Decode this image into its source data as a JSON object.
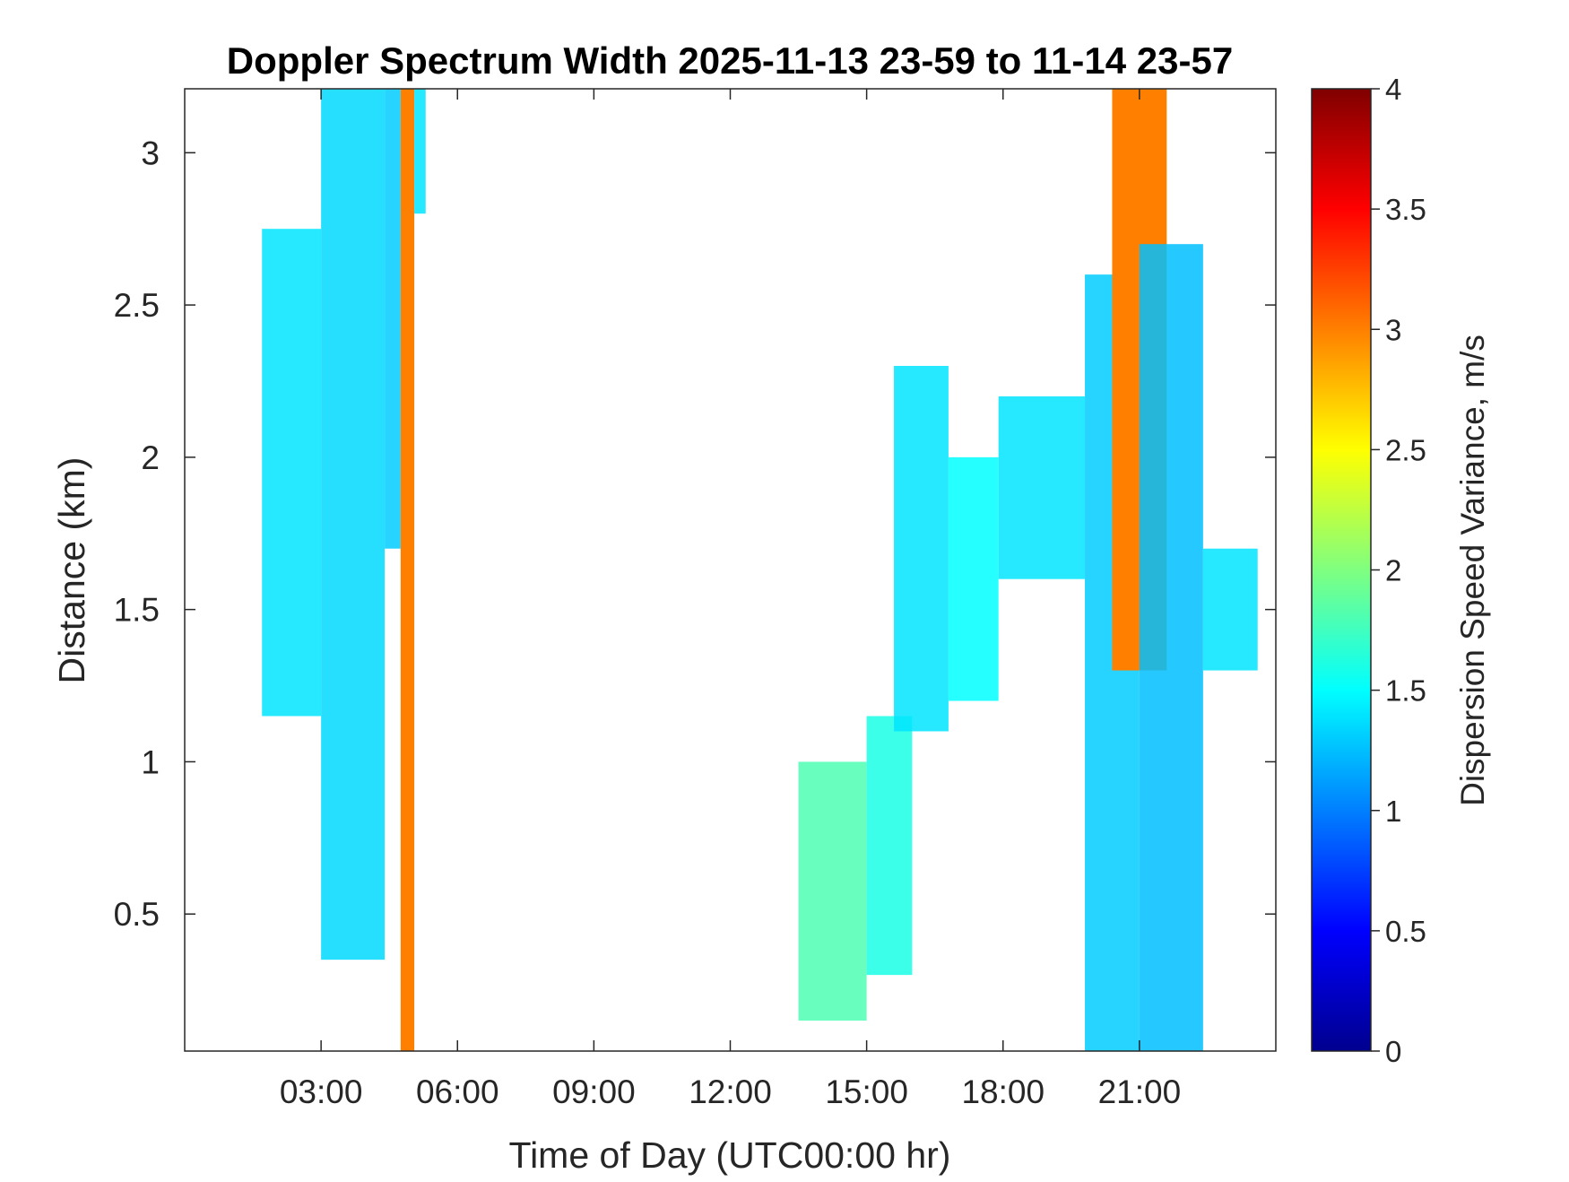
{
  "chart_data": {
    "type": "heatmap",
    "title": "Doppler Spectrum Width 2025-11-13 23-59 to 11-14 23-57",
    "xlabel": "Time of Day (UTC00:00 hr)",
    "ylabel": "Distance (km)",
    "xlim": [
      0,
      24
    ],
    "ylim": [
      0.05,
      3.21
    ],
    "x_ticks": [
      3,
      6,
      9,
      12,
      15,
      18,
      21
    ],
    "x_tick_labels": [
      "03:00",
      "06:00",
      "09:00",
      "12:00",
      "15:00",
      "18:00",
      "21:00"
    ],
    "y_ticks": [
      0.5,
      1,
      1.5,
      2,
      2.5,
      3
    ],
    "y_tick_labels": [
      "0.5",
      "1",
      "1.5",
      "2",
      "2.5",
      "3"
    ],
    "colorbar": {
      "label": "Dispersion Speed Variance, m/s",
      "colormap": "jet",
      "range": [
        0,
        4
      ],
      "ticks": [
        0,
        0.5,
        1,
        1.5,
        2,
        2.5,
        3,
        3.5,
        4
      ],
      "tick_labels": [
        "0",
        "0.5",
        "1",
        "1.5",
        "2",
        "2.5",
        "3",
        "3.5",
        "4"
      ]
    },
    "grid": false,
    "regions": [
      {
        "x": [
          1.7,
          3.0
        ],
        "y": [
          1.15,
          2.75
        ],
        "value": 1.4
      },
      {
        "x": [
          3.0,
          4.4
        ],
        "y": [
          0.35,
          3.21
        ],
        "value": 1.35
      },
      {
        "x": [
          4.4,
          4.75
        ],
        "y": [
          1.7,
          3.21
        ],
        "value": 1.3
      },
      {
        "x": [
          4.75,
          5.05
        ],
        "y": [
          0.05,
          3.21
        ],
        "value": 3.0
      },
      {
        "x": [
          5.05,
          5.3
        ],
        "y": [
          2.8,
          3.21
        ],
        "value": 1.4
      },
      {
        "x": [
          13.5,
          15.0
        ],
        "y": [
          0.15,
          1.0
        ],
        "value": 1.8
      },
      {
        "x": [
          15.0,
          16.0
        ],
        "y": [
          0.3,
          1.15
        ],
        "value": 1.6
      },
      {
        "x": [
          15.6,
          16.8
        ],
        "y": [
          1.1,
          2.3
        ],
        "value": 1.4
      },
      {
        "x": [
          16.8,
          17.9
        ],
        "y": [
          1.2,
          2.0
        ],
        "value": 1.5
      },
      {
        "x": [
          17.9,
          19.8
        ],
        "y": [
          1.6,
          2.2
        ],
        "value": 1.4
      },
      {
        "x": [
          19.8,
          21.0
        ],
        "y": [
          0.05,
          2.6
        ],
        "value": 1.3
      },
      {
        "x": [
          20.4,
          21.6
        ],
        "y": [
          1.3,
          3.21
        ],
        "value": 3.0
      },
      {
        "x": [
          21.0,
          22.4
        ],
        "y": [
          0.05,
          2.7
        ],
        "value": 1.25
      },
      {
        "x": [
          22.4,
          23.6
        ],
        "y": [
          1.3,
          1.7
        ],
        "value": 1.4
      }
    ]
  }
}
